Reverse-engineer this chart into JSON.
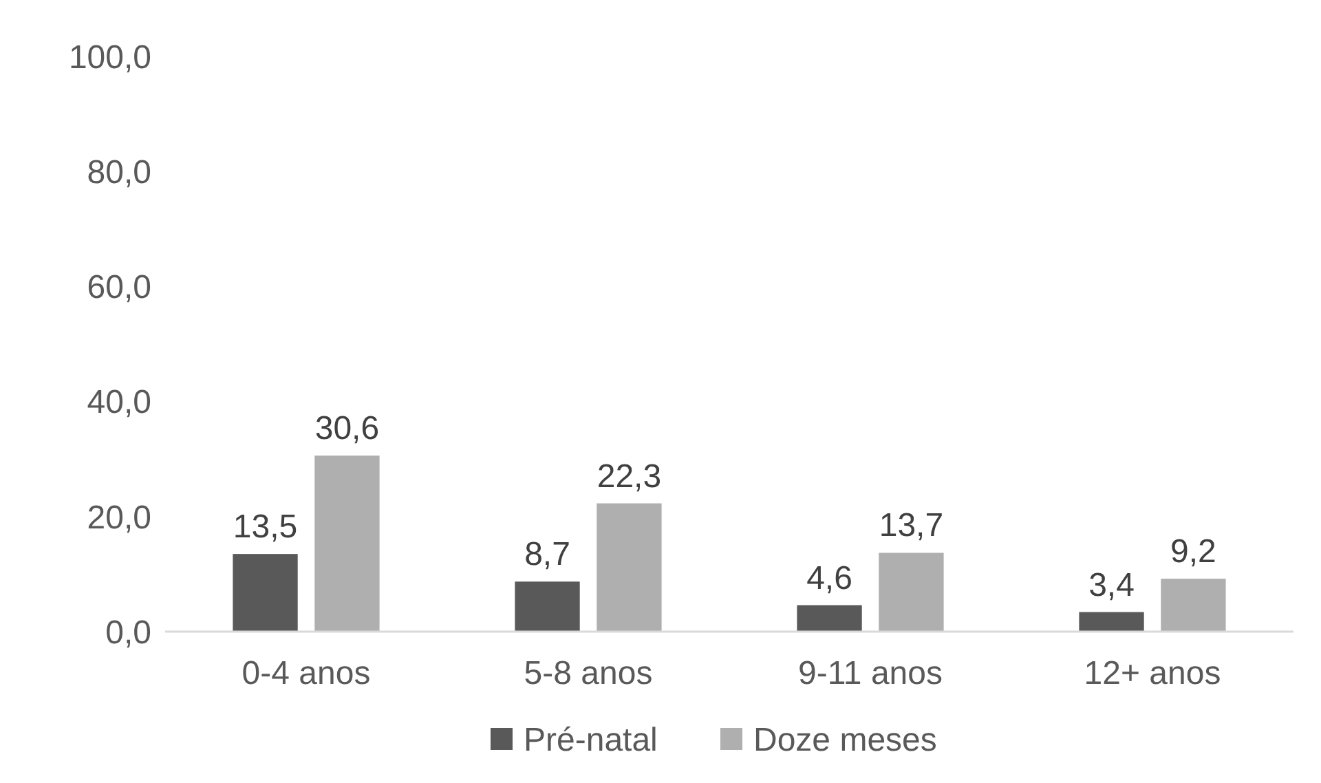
{
  "chart_data": {
    "type": "bar",
    "categories": [
      "0-4 anos",
      "5-8 anos",
      "9-11 anos",
      "12+ anos"
    ],
    "series": [
      {
        "name": "Pré-natal",
        "color": "#595959",
        "values": [
          13.5,
          8.7,
          4.6,
          3.4
        ],
        "value_labels": [
          "13,5",
          "8,7",
          "4,6",
          "3,4"
        ]
      },
      {
        "name": "Doze meses",
        "color": "#afafaf",
        "values": [
          30.6,
          22.3,
          13.7,
          9.2
        ],
        "value_labels": [
          "30,6",
          "22,3",
          "13,7",
          "9,2"
        ]
      }
    ],
    "ylim": [
      0,
      100
    ],
    "yticks": [
      {
        "value": 0,
        "label": "0,0"
      },
      {
        "value": 20,
        "label": "20,0"
      },
      {
        "value": 40,
        "label": "40,0"
      },
      {
        "value": 60,
        "label": "60,0"
      },
      {
        "value": 80,
        "label": "80,0"
      },
      {
        "value": 100,
        "label": "100,0"
      }
    ],
    "grid": false,
    "legend": "bottom"
  }
}
